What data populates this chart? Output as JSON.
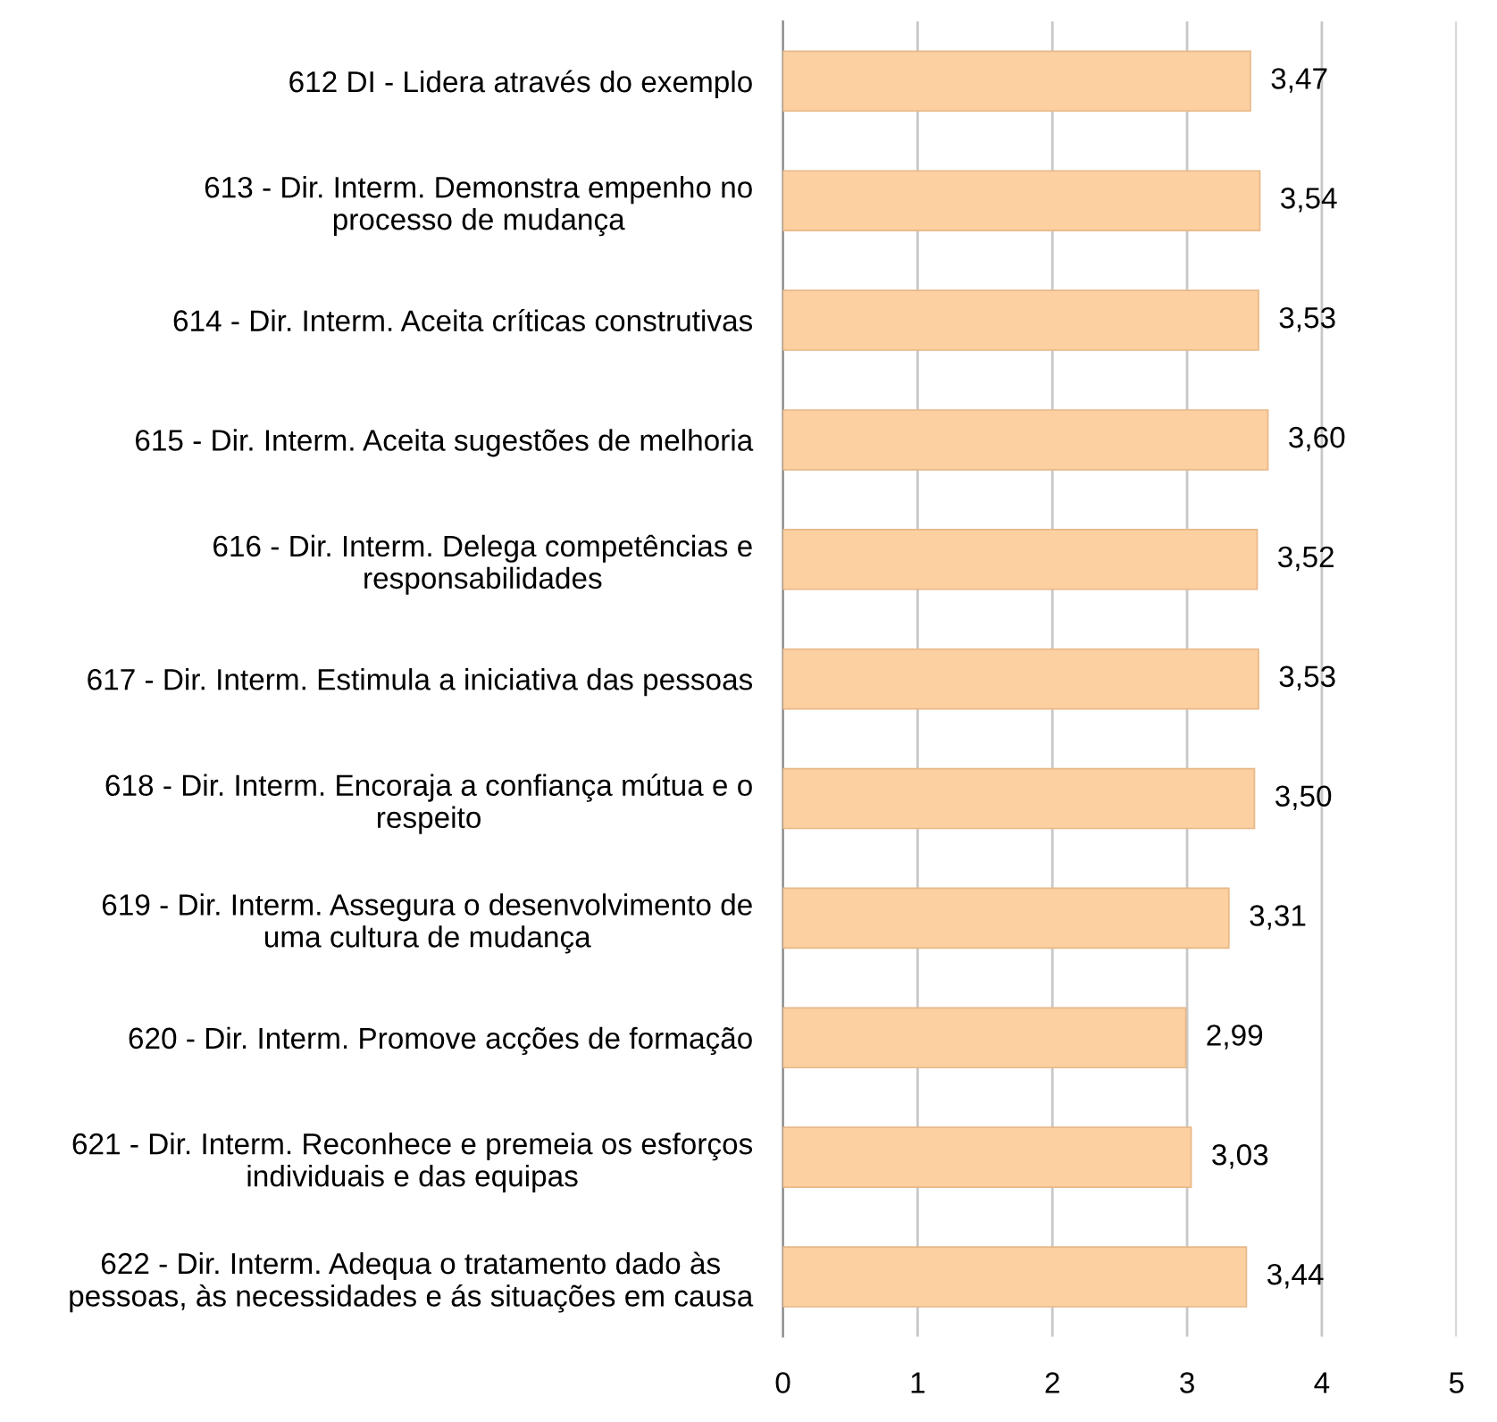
{
  "chart_data": {
    "type": "bar",
    "orientation": "horizontal",
    "categories": [
      "612 DI - Lidera através do exemplo",
      "613 - Dir. Interm. Demonstra empenho no\nprocesso de mudança",
      "614 - Dir. Interm. Aceita críticas construtivas",
      "615 - Dir. Interm. Aceita sugestões de melhoria",
      "616 - Dir. Interm. Delega competências e\nresponsabilidades",
      "617 - Dir. Interm. Estimula a iniciativa das pessoas",
      "618 - Dir. Interm. Encoraja a confiança mútua e o\nrespeito",
      "619 - Dir. Interm. Assegura o desenvolvimento de\numa cultura de mudança",
      "620 - Dir. Interm. Promove acções de formação",
      "621 - Dir. Interm. Reconhece e premeia os esforços\nindividuais e das equipas",
      "622 - Dir. Interm. Adequa o tratamento dado às\npessoas, às necessidades e ás situações em causa"
    ],
    "values": [
      3.47,
      3.54,
      3.53,
      3.6,
      3.52,
      3.53,
      3.5,
      3.31,
      2.99,
      3.03,
      3.44
    ],
    "value_labels": [
      "3,47",
      "3,54",
      "3,53",
      "3,60",
      "3,52",
      "3,53",
      "3,50",
      "3,31",
      "2,99",
      "3,03",
      "3,44"
    ],
    "color": "#fcd0a1",
    "xlim": [
      0,
      5
    ],
    "xticks": [
      0,
      1,
      2,
      3,
      4,
      5
    ],
    "grid": "x",
    "legend": false
  }
}
